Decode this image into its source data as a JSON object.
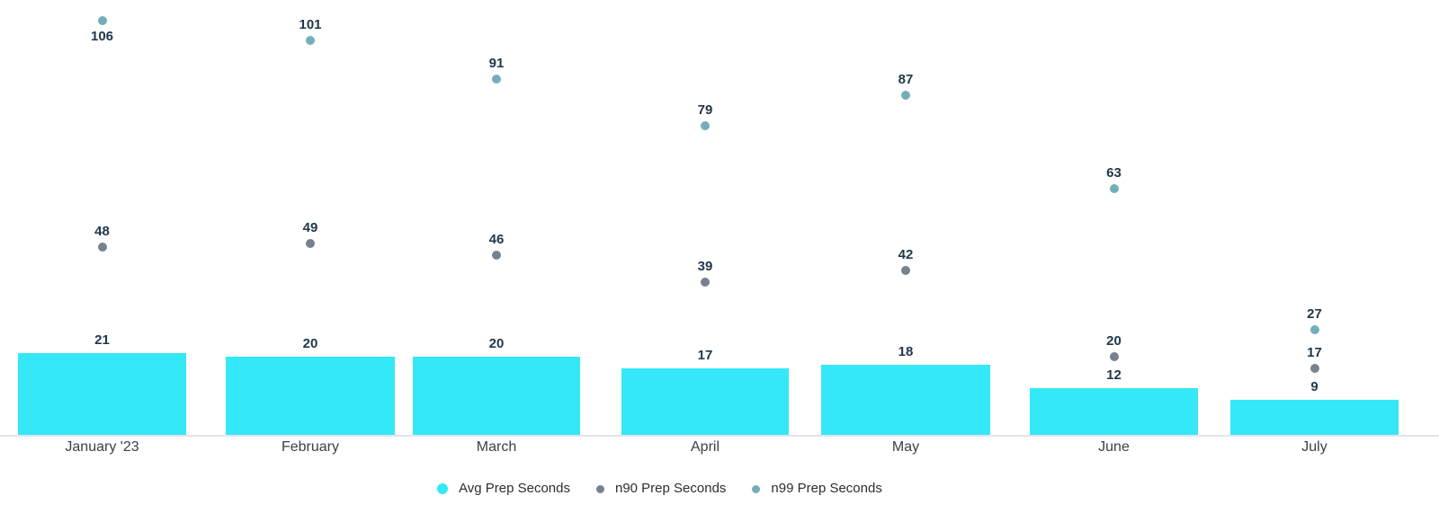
{
  "chart_data": {
    "type": "bar",
    "subtype": "bar-with-scatter-overlay",
    "title": "",
    "xlabel": "",
    "ylabel": "",
    "ylim": [
      0,
      111
    ],
    "grid": false,
    "axes_shown": false,
    "value_labels": true,
    "legend_position": "bottom-center",
    "categories": [
      "January '23",
      "February",
      "March",
      "April",
      "May",
      "June",
      "July"
    ],
    "series": [
      {
        "name": "Avg Prep Seconds",
        "type": "bar",
        "color": "#35e8f7",
        "values": [
          21,
          20,
          20,
          17,
          18,
          12,
          9
        ]
      },
      {
        "name": "n90 Prep Seconds",
        "type": "scatter",
        "color": "#76828e",
        "values": [
          48,
          49,
          46,
          39,
          42,
          20,
          17
        ]
      },
      {
        "name": "n99 Prep Seconds",
        "type": "scatter",
        "color": "#74aeba",
        "values": [
          106,
          101,
          91,
          79,
          87,
          63,
          27
        ]
      }
    ]
  },
  "colors": {
    "background": "#ffffff",
    "axis_line": "#e1e4eb",
    "value_label_text": "#21384a",
    "month_label_text": "#3b4147",
    "legend_text": "#2e2e2e"
  }
}
